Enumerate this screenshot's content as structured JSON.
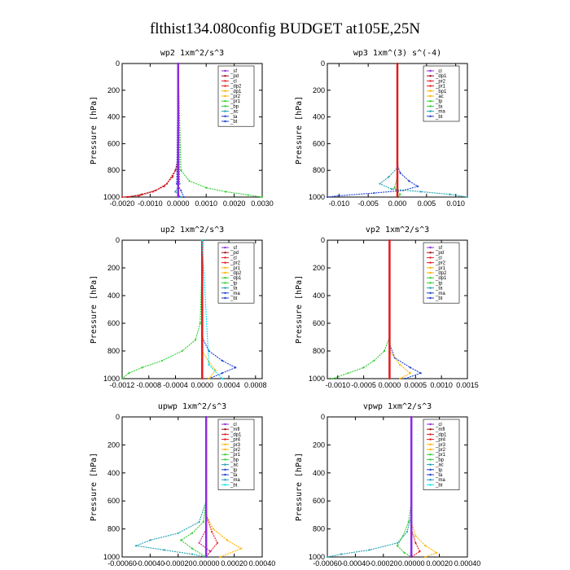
{
  "title": "flthist134.080config  BUDGET at105E,25N",
  "colors": {
    "red": "#e41a1c",
    "darkred": "#a50f15",
    "purple": "#8a2be2",
    "green": "#33cc33",
    "blue": "#1f3fd0",
    "teal": "#20a0b0",
    "cyan": "#00e5ee",
    "orange": "#ffb300",
    "magenta": "#d02090",
    "black": "#000000"
  },
  "chart_data": [
    {
      "type": "line",
      "title": "wp2  1xm^2/s^3",
      "ylabel": "Pressure [hPa]",
      "ylim": [
        1000,
        0
      ],
      "yticks": [
        0,
        200,
        400,
        600,
        800,
        1000
      ],
      "xlim": [
        -0.002,
        0.003
      ],
      "xticks": [
        "-0.0020",
        "-0.0010",
        "0.0000",
        "0.0010",
        "0.0020",
        "0.0030"
      ],
      "xtick_values": [
        -0.002,
        -0.001,
        0.0,
        0.001,
        0.002,
        0.003
      ],
      "legend": [
        "_sf",
        "_pd",
        "_cl",
        "_dp2",
        "_dp1",
        "_pr2",
        "_pr1",
        "_bp",
        "_ac",
        "_ta",
        "_bt"
      ],
      "series": [
        {
          "name": "_pd",
          "color": "darkred",
          "p": [
            0,
            700,
            800,
            900,
            950,
            980,
            1000
          ],
          "v": [
            0,
            0,
            -0.0001,
            -0.0004,
            -0.0008,
            -0.0013,
            -0.0018
          ]
        },
        {
          "name": "_cl",
          "color": "red",
          "p": [
            0,
            750,
            850,
            920,
            960,
            990,
            1000
          ],
          "v": [
            0,
            0,
            -0.0002,
            -0.0005,
            -0.0009,
            -0.0014,
            -0.002
          ]
        },
        {
          "name": "_pr1",
          "color": "green",
          "p": [
            0,
            800,
            880,
            930,
            960,
            985,
            1000
          ],
          "v": [
            0,
            0.0001,
            0.0004,
            0.001,
            0.0017,
            0.0025,
            0.003
          ]
        },
        {
          "name": "_ac",
          "color": "blue",
          "p": [
            0,
            900,
            950,
            1000
          ],
          "v": [
            0,
            -5e-05,
            0.0001,
            0.0002
          ]
        },
        {
          "name": "_bp",
          "color": "teal",
          "p": [
            0,
            900,
            960,
            1000
          ],
          "v": [
            0,
            5e-05,
            -0.0001,
            0.0001
          ]
        },
        {
          "name": "_sf",
          "color": "purple",
          "p": [
            0,
            1000
          ],
          "v": [
            0,
            0
          ]
        }
      ]
    },
    {
      "type": "line",
      "title": "wp3  1xm^(3) s^(-4)",
      "ylabel": "Pressure [hPa]",
      "ylim": [
        1000,
        0
      ],
      "yticks": [
        0,
        200,
        400,
        600,
        800,
        1000
      ],
      "xlim": [
        -0.012,
        0.012
      ],
      "xticks": [
        "-0.010",
        "-0.005",
        "0.000",
        "0.005",
        "0.010"
      ],
      "xtick_values": [
        -0.01,
        -0.005,
        0.0,
        0.005,
        0.01
      ],
      "legend": [
        "_cl",
        "_dp1",
        "_pr2",
        "_pr1",
        "_bp1",
        "_ac",
        "_tp",
        "_ta",
        "_ma",
        "_bt"
      ],
      "series": [
        {
          "name": "_ta",
          "color": "blue",
          "p": [
            0,
            760,
            820,
            880,
            920,
            950,
            970,
            990,
            1000
          ],
          "v": [
            0,
            0,
            0.0005,
            0.002,
            0.0035,
            0.001,
            -0.004,
            -0.01,
            -0.012
          ]
        },
        {
          "name": "_tp",
          "color": "teal",
          "p": [
            0,
            780,
            850,
            900,
            940,
            960,
            980,
            1000
          ],
          "v": [
            0,
            0,
            -0.0015,
            -0.003,
            -0.001,
            0.004,
            0.009,
            0.012
          ]
        },
        {
          "name": "_pr1",
          "color": "green",
          "p": [
            0,
            850,
            930,
            980,
            1000
          ],
          "v": [
            0,
            0,
            -0.0005,
            0.0005,
            0
          ]
        },
        {
          "name": "_cl",
          "color": "red",
          "p": [
            0,
            1000
          ],
          "v": [
            0,
            0
          ]
        }
      ]
    },
    {
      "type": "line",
      "title": "up2  1xm^2/s^3",
      "ylabel": "Pressure [hPa]",
      "ylim": [
        1000,
        0
      ],
      "yticks": [
        0,
        200,
        400,
        600,
        800,
        1000
      ],
      "xlim": [
        -0.0012,
        0.0009
      ],
      "xticks": [
        "-0.0012",
        "-0.0008",
        "-0.0004",
        "0.0000",
        "0.0004",
        "0.0008"
      ],
      "xtick_values": [
        -0.0012,
        -0.0008,
        -0.0004,
        0.0,
        0.0004,
        0.0008
      ],
      "legend": [
        "_sf",
        "_pd",
        "_cl",
        "_pr2",
        "_pr1",
        "_dp2",
        "_dp1",
        "_tp",
        "_ta",
        "_ma",
        "_bt"
      ],
      "series": [
        {
          "name": "_dp1",
          "color": "green",
          "p": [
            0,
            150,
            600,
            720,
            800,
            870,
            920,
            960,
            1000
          ],
          "v": [
            0,
            0,
            -3e-05,
            -0.0001,
            -0.0003,
            -0.0006,
            -0.0009,
            -0.0011,
            -0.0012
          ]
        },
        {
          "name": "_ta",
          "color": "blue",
          "p": [
            0,
            700,
            800,
            870,
            920,
            960,
            1000
          ],
          "v": [
            0,
            0,
            0.0001,
            0.0003,
            0.0005,
            0.0003,
            0.0001
          ]
        },
        {
          "name": "_pr2",
          "color": "orange",
          "p": [
            0,
            800,
            880,
            940,
            1000
          ],
          "v": [
            0,
            0,
            0.0001,
            0.0002,
            0.0001
          ]
        },
        {
          "name": "_sf",
          "color": "red",
          "p": [
            0,
            1000
          ],
          "v": [
            0,
            0
          ]
        },
        {
          "name": "_bt",
          "color": "cyan",
          "p": [
            0,
            900,
            1000
          ],
          "v": [
            0,
            0.0001,
            0.0003
          ]
        }
      ]
    },
    {
      "type": "line",
      "title": "vp2  1xm^2/s^3",
      "ylabel": "Pressure [hPa]",
      "ylim": [
        1000,
        0
      ],
      "yticks": [
        0,
        200,
        400,
        600,
        800,
        1000
      ],
      "xlim": [
        -0.0012,
        0.0015
      ],
      "xticks": [
        "-0.0010",
        "-0.0005",
        "0.0000",
        "0.0005",
        "0.0010",
        "0.0015"
      ],
      "xtick_values": [
        -0.001,
        -0.0005,
        0.0,
        0.0005,
        0.001,
        0.0015
      ],
      "legend": [
        "_sf",
        "_pd",
        "_cl",
        "_pr2",
        "_pr1",
        "_dp2",
        "_dp1",
        "_tp",
        "_ta",
        "_ma",
        "_bt"
      ],
      "series": [
        {
          "name": "_dp1",
          "color": "green",
          "p": [
            0,
            700,
            800,
            870,
            920,
            960,
            1000
          ],
          "v": [
            0,
            0,
            -0.0001,
            -0.0003,
            -0.0005,
            -0.0008,
            -0.0011
          ]
        },
        {
          "name": "_ta",
          "color": "blue",
          "p": [
            0,
            750,
            850,
            920,
            960,
            1000
          ],
          "v": [
            0,
            0,
            0.0001,
            0.0004,
            0.0006,
            0.0003
          ]
        },
        {
          "name": "_pr2",
          "color": "orange",
          "p": [
            0,
            800,
            900,
            960,
            1000
          ],
          "v": [
            0,
            0,
            0.0002,
            0.0004,
            0.0002
          ]
        },
        {
          "name": "_sf",
          "color": "red",
          "p": [
            0,
            1000
          ],
          "v": [
            0,
            0
          ]
        }
      ]
    },
    {
      "type": "line",
      "title": "upwp  1xm^2/s^3",
      "ylabel": "Pressure [hPa]",
      "ylim": [
        1000,
        0
      ],
      "yticks": [
        0,
        200,
        400,
        600,
        800,
        1000
      ],
      "xlim": [
        -0.0006,
        0.0004
      ],
      "xticks": [
        "-0.00060",
        "-0.00040",
        "-0.00020",
        "0.00000",
        "0.00020",
        "0.00040"
      ],
      "xtick_values": [
        -0.0006,
        -0.0004,
        -0.0002,
        0.0,
        0.0002,
        0.0004
      ],
      "legend": [
        "_cl",
        "_mfl",
        "_dp1",
        "_pr4",
        "_pr3",
        "_pr2",
        "_pr1",
        "_bp",
        "_ac",
        "_tp",
        "_ta",
        "_ma",
        "_bt"
      ],
      "series": [
        {
          "name": "_ta",
          "color": "teal",
          "p": [
            0,
            600,
            750,
            830,
            880,
            920,
            950,
            980,
            1000
          ],
          "v": [
            0,
            0,
            -5e-05,
            -0.0002,
            -0.0004,
            -0.0005,
            -0.0003,
            -0.0001,
            0
          ]
        },
        {
          "name": "_pr1",
          "color": "green",
          "p": [
            0,
            600,
            750,
            830,
            880,
            940,
            1000
          ],
          "v": [
            0,
            0,
            -2e-05,
            -0.0001,
            -0.00018,
            -0.0001,
            0
          ]
        },
        {
          "name": "_pr2",
          "color": "orange",
          "p": [
            0,
            700,
            800,
            880,
            940,
            1000
          ],
          "v": [
            0,
            0,
            5e-05,
            0.00015,
            0.00025,
            0.0001
          ]
        },
        {
          "name": "_dp1",
          "color": "red",
          "p": [
            0,
            700,
            820,
            900,
            960,
            1000
          ],
          "v": [
            0,
            0,
            4e-05,
            8e-05,
            3e-05,
            0
          ]
        },
        {
          "name": "_pr3",
          "color": "magenta",
          "p": [
            0,
            800,
            900,
            960,
            1000
          ],
          "v": [
            0,
            0,
            -5e-05,
            3e-05,
            0
          ]
        },
        {
          "name": "_cl",
          "color": "purple",
          "p": [
            0,
            1000
          ],
          "v": [
            0,
            0
          ]
        }
      ]
    },
    {
      "type": "line",
      "title": "vpwp  1xm^2/s^3",
      "ylabel": "Pressure [hPa]",
      "ylim": [
        1000,
        0
      ],
      "yticks": [
        0,
        200,
        400,
        600,
        800,
        1000
      ],
      "xlim": [
        -0.0006,
        0.0004
      ],
      "xticks": [
        "-0.00060",
        "-0.00040",
        "-0.00020",
        "0.00000",
        "0.00020",
        "0.00040"
      ],
      "xtick_values": [
        -0.0006,
        -0.0004,
        -0.0002,
        0.0,
        0.0002,
        0.0004
      ],
      "legend": [
        "_cl",
        "_mfl",
        "_dp1",
        "_pr4",
        "_pr3",
        "_pr2",
        "_pr1",
        "_bp",
        "_ac",
        "_tp",
        "_ta",
        "_ma",
        "_bt"
      ],
      "series": [
        {
          "name": "_ta",
          "color": "teal",
          "p": [
            0,
            700,
            820,
            900,
            950,
            980,
            1000
          ],
          "v": [
            0,
            0,
            -3e-05,
            -0.0001,
            -0.0003,
            -0.0005,
            -0.0006
          ]
        },
        {
          "name": "_pr1",
          "color": "green",
          "p": [
            0,
            600,
            750,
            850,
            920,
            970,
            1000
          ],
          "v": [
            0,
            0,
            -2e-05,
            -6e-05,
            -0.0001,
            -5e-05,
            0
          ]
        },
        {
          "name": "_pr2",
          "color": "orange",
          "p": [
            0,
            750,
            850,
            920,
            970,
            1000
          ],
          "v": [
            0,
            0,
            3e-05,
            0.0001,
            0.00018,
            0.0001
          ]
        },
        {
          "name": "_dp1",
          "color": "red",
          "p": [
            0,
            800,
            900,
            960,
            1000
          ],
          "v": [
            0,
            0,
            3e-05,
            6e-05,
            0
          ]
        },
        {
          "name": "_cl",
          "color": "purple",
          "p": [
            0,
            1000
          ],
          "v": [
            0,
            0
          ]
        }
      ]
    }
  ]
}
